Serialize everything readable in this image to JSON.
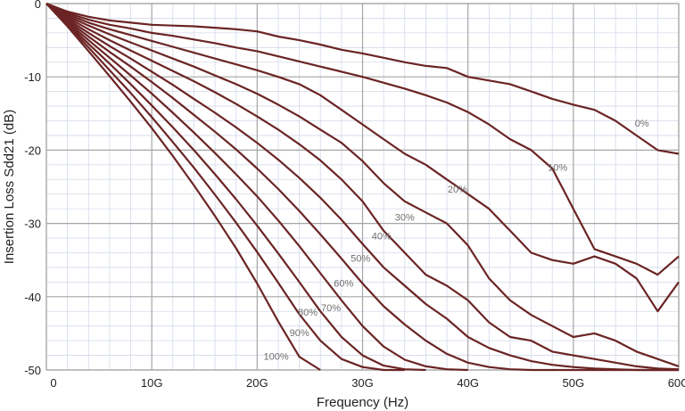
{
  "chart_data": {
    "type": "line",
    "title": "",
    "xlabel": "Frequency (Hz)",
    "ylabel": "Insertion Loss Sdd21 (dB)",
    "xlim": [
      0,
      60
    ],
    "ylim": [
      -50,
      0
    ],
    "grid": true,
    "legend": "none",
    "x_ticks": [
      {
        "value": 0,
        "label": "0"
      },
      {
        "value": 10,
        "label": "10G"
      },
      {
        "value": 20,
        "label": "20G"
      },
      {
        "value": 30,
        "label": "30G"
      },
      {
        "value": 40,
        "label": "40G"
      },
      {
        "value": 50,
        "label": "50G"
      },
      {
        "value": 60,
        "label": "60G"
      }
    ],
    "y_ticks": [
      {
        "value": 0,
        "label": "0"
      },
      {
        "value": -10,
        "label": "-10"
      },
      {
        "value": -20,
        "label": "-20"
      },
      {
        "value": -30,
        "label": "-30"
      },
      {
        "value": -40,
        "label": "-40"
      },
      {
        "value": -50,
        "label": "-50"
      }
    ],
    "colors": {
      "line": "#6b2424",
      "major_grid": "#a6a6a6",
      "minor_grid": "#d3d9ea",
      "label": "#6e6e6e"
    },
    "series": [
      {
        "label": "0%",
        "label_at": [
          56.5,
          -16.8
        ],
        "x": [
          0,
          2,
          4,
          6,
          8,
          10,
          12,
          14,
          16,
          18,
          20,
          22,
          24,
          26,
          28,
          30,
          32,
          34,
          36,
          38,
          40,
          42,
          44,
          46,
          48,
          50,
          52,
          54,
          56,
          58,
          60
        ],
        "y": [
          0,
          -1.1,
          -1.8,
          -2.3,
          -2.6,
          -2.9,
          -3.0,
          -3.1,
          -3.3,
          -3.5,
          -3.8,
          -4.5,
          -5.0,
          -5.6,
          -6.3,
          -6.8,
          -7.4,
          -8.0,
          -8.5,
          -8.8,
          -10.0,
          -10.5,
          -11.0,
          -12.0,
          -13.0,
          -13.8,
          -14.5,
          -16.0,
          -18.0,
          -20.0,
          -20.5
        ]
      },
      {
        "label": "10%",
        "label_at": [
          48.5,
          -22.8
        ],
        "x": [
          0,
          2,
          4,
          6,
          8,
          10,
          12,
          14,
          16,
          18,
          20,
          22,
          24,
          26,
          28,
          30,
          32,
          34,
          36,
          38,
          40,
          42,
          44,
          46,
          48,
          50,
          52,
          54,
          56,
          58,
          60
        ],
        "y": [
          0,
          -1.3,
          -2.2,
          -2.9,
          -3.4,
          -4.0,
          -4.4,
          -4.9,
          -5.4,
          -6.0,
          -6.5,
          -7.2,
          -7.9,
          -8.6,
          -9.3,
          -10.0,
          -10.8,
          -11.6,
          -12.5,
          -13.5,
          -14.8,
          -16.5,
          -18.5,
          -20.0,
          -22.5,
          -28.0,
          -33.5,
          -34.5,
          -35.5,
          -37.0,
          -34.5
        ]
      },
      {
        "label": "20%",
        "label_at": [
          39.0,
          -25.8
        ],
        "x": [
          0,
          2,
          4,
          6,
          8,
          10,
          12,
          14,
          16,
          18,
          20,
          22,
          24,
          26,
          28,
          30,
          32,
          34,
          36,
          38,
          40,
          42,
          44,
          46,
          48,
          50,
          52,
          54,
          56,
          58,
          60
        ],
        "y": [
          0,
          -1.5,
          -2.6,
          -3.5,
          -4.3,
          -5.1,
          -5.9,
          -6.7,
          -7.5,
          -8.3,
          -9.1,
          -10.0,
          -11.0,
          -12.5,
          -14.5,
          -16.5,
          -18.5,
          -20.5,
          -22.0,
          -24.0,
          -26.0,
          -28.0,
          -31.0,
          -34.0,
          -35.0,
          -35.5,
          -34.5,
          -35.5,
          -37.5,
          -42.0,
          -38.0
        ]
      },
      {
        "label": "30%",
        "label_at": [
          34.0,
          -29.6
        ],
        "x": [
          0,
          2,
          4,
          6,
          8,
          10,
          12,
          14,
          16,
          18,
          20,
          22,
          24,
          26,
          28,
          30,
          32,
          34,
          36,
          38,
          40,
          42,
          44,
          46,
          48,
          50,
          52,
          54,
          56,
          58,
          60
        ],
        "y": [
          0,
          -1.7,
          -3.0,
          -4.2,
          -5.3,
          -6.4,
          -7.5,
          -8.6,
          -9.8,
          -11.0,
          -12.3,
          -13.8,
          -15.4,
          -17.2,
          -19.0,
          -21.5,
          -24.5,
          -27.0,
          -28.5,
          -30.0,
          -33.0,
          -37.5,
          -40.5,
          -42.5,
          -44.0,
          -45.5,
          -45.0,
          -46.0,
          -47.5,
          -48.5,
          -49.5
        ]
      },
      {
        "label": "40%",
        "label_at": [
          31.8,
          -32.2
        ],
        "x": [
          0,
          2,
          4,
          6,
          8,
          10,
          12,
          14,
          16,
          18,
          20,
          22,
          24,
          26,
          28,
          30,
          32,
          34,
          36,
          38,
          40,
          42,
          44,
          46,
          48,
          50,
          52,
          54,
          56,
          58,
          60
        ],
        "y": [
          0,
          -1.9,
          -3.5,
          -5.0,
          -6.4,
          -7.8,
          -9.2,
          -10.6,
          -12.1,
          -13.7,
          -15.4,
          -17.2,
          -19.2,
          -21.4,
          -24.0,
          -27.0,
          -31.0,
          -34.0,
          -37.0,
          -38.5,
          -40.5,
          -43.5,
          -45.5,
          -46.0,
          -47.5,
          -48.0,
          -48.5,
          -49.0,
          -49.5,
          -49.8,
          -49.9
        ]
      },
      {
        "label": "50%",
        "label_at": [
          29.8,
          -35.2
        ],
        "x": [
          0,
          2,
          4,
          6,
          8,
          10,
          12,
          14,
          16,
          18,
          20,
          22,
          24,
          26,
          28,
          30,
          32,
          34,
          36,
          38,
          40,
          42,
          44,
          46,
          48,
          50,
          52,
          54,
          56,
          58,
          60
        ],
        "y": [
          0,
          -2.1,
          -4.0,
          -5.8,
          -7.5,
          -9.3,
          -11.1,
          -13.0,
          -14.9,
          -16.9,
          -19.0,
          -21.3,
          -23.8,
          -26.5,
          -29.5,
          -32.8,
          -36.0,
          -38.5,
          -41.0,
          -43.0,
          -45.5,
          -47.0,
          -48.0,
          -48.8,
          -49.3,
          -49.6,
          -49.8,
          -49.9,
          -50.0,
          -50.0,
          -50.0
        ]
      },
      {
        "label": "60%",
        "label_at": [
          28.2,
          -38.6
        ],
        "x": [
          0,
          2,
          4,
          6,
          8,
          10,
          12,
          14,
          16,
          18,
          20,
          22,
          24,
          26,
          28,
          30,
          32,
          34,
          36,
          38,
          40,
          42,
          44,
          46,
          48,
          50,
          52,
          54,
          56,
          58,
          60
        ],
        "y": [
          0,
          -2.3,
          -4.5,
          -6.6,
          -8.6,
          -10.7,
          -12.9,
          -15.2,
          -17.5,
          -19.9,
          -22.5,
          -25.3,
          -28.3,
          -31.5,
          -34.8,
          -38.2,
          -41.3,
          -43.8,
          -46.0,
          -47.8,
          -49.0,
          -49.6,
          -49.9,
          -50.0,
          -50.0,
          -50.0,
          -50.0,
          -50.0,
          -50.0,
          -50.0,
          -50.0
        ]
      },
      {
        "label": "70%",
        "label_at": [
          27.0,
          -42.0
        ],
        "x": [
          0,
          2,
          4,
          6,
          8,
          10,
          12,
          14,
          16,
          18,
          20,
          22,
          24,
          26,
          28,
          30,
          32,
          34,
          36,
          38,
          40
        ],
        "y": [
          0,
          -2.5,
          -5.0,
          -7.4,
          -9.8,
          -12.3,
          -14.9,
          -17.6,
          -20.4,
          -23.3,
          -26.3,
          -29.6,
          -33.1,
          -36.8,
          -40.5,
          -44.0,
          -46.8,
          -48.6,
          -49.5,
          -49.9,
          -50.0
        ]
      },
      {
        "label": "80%",
        "label_at": [
          24.8,
          -42.6
        ],
        "x": [
          0,
          2,
          4,
          6,
          8,
          10,
          12,
          14,
          16,
          18,
          20,
          22,
          24,
          26,
          28,
          30,
          32,
          34,
          36
        ],
        "y": [
          0,
          -2.7,
          -5.5,
          -8.2,
          -11.0,
          -13.9,
          -16.9,
          -20.0,
          -23.3,
          -26.7,
          -30.3,
          -34.1,
          -38.0,
          -42.0,
          -45.5,
          -48.0,
          -49.4,
          -49.9,
          -50.0
        ]
      },
      {
        "label": "90%",
        "label_at": [
          24.0,
          -45.4
        ],
        "x": [
          0,
          2,
          4,
          6,
          8,
          10,
          12,
          14,
          16,
          18,
          20,
          22,
          24,
          26,
          28,
          30,
          32,
          34
        ],
        "y": [
          0,
          -2.9,
          -6.0,
          -9.1,
          -12.2,
          -15.5,
          -18.9,
          -22.4,
          -26.1,
          -29.9,
          -33.9,
          -38.1,
          -42.4,
          -46.0,
          -48.5,
          -49.6,
          -50.0,
          -50.0
        ]
      },
      {
        "label": "100%",
        "label_at": [
          21.8,
          -48.6
        ],
        "x": [
          0,
          2,
          4,
          6,
          8,
          10,
          12,
          14,
          16,
          18,
          20,
          22,
          24,
          26
        ],
        "y": [
          0,
          -3.1,
          -6.5,
          -9.9,
          -13.4,
          -17.0,
          -20.8,
          -24.8,
          -29.0,
          -33.4,
          -38.2,
          -43.4,
          -48.2,
          -50.0
        ]
      }
    ]
  }
}
